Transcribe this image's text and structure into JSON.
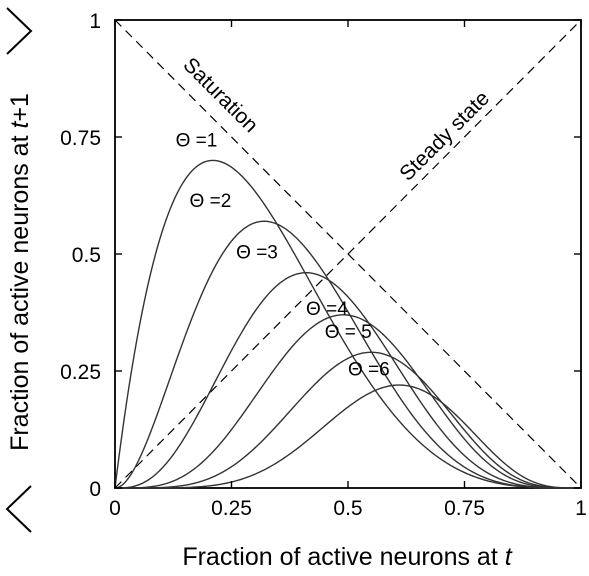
{
  "chart_data": {
    "type": "line",
    "xlabel": "Fraction of active neurons at t",
    "xlabel_text": "Fraction of active neurons at ",
    "xlabel_var": "t",
    "ylabel_text": "Fraction of active neurons at ",
    "ylabel_var": "t",
    "ylabel_suffix": "+1",
    "xlim": [
      0,
      1
    ],
    "ylim": [
      0,
      1
    ],
    "x_ticks": [
      {
        "value": 0,
        "label": "0"
      },
      {
        "value": 0.25,
        "label": "0.25"
      },
      {
        "value": 0.5,
        "label": "0.5"
      },
      {
        "value": 0.75,
        "label": "0.75"
      },
      {
        "value": 1,
        "label": "1"
      }
    ],
    "y_ticks": [
      {
        "value": 0,
        "label": "0"
      },
      {
        "value": 0.25,
        "label": "0.25"
      },
      {
        "value": 0.5,
        "label": "0.5"
      },
      {
        "value": 0.75,
        "label": "0.75"
      },
      {
        "value": 1,
        "label": "1"
      }
    ],
    "reference_lines": [
      {
        "name": "Saturation",
        "label": "Saturation",
        "x": [
          0,
          1
        ],
        "y": [
          1,
          0
        ],
        "style": "dashed"
      },
      {
        "name": "Steady state",
        "label": "Steady state",
        "x": [
          0,
          1
        ],
        "y": [
          0,
          1
        ],
        "style": "dashed"
      }
    ],
    "series": [
      {
        "label": "Θ =1",
        "theta": 1,
        "peak_x": 0.21,
        "peak_y": 0.7,
        "label_at": [
          0.13,
          0.73
        ]
      },
      {
        "label": "Θ =2",
        "theta": 2,
        "peak_x": 0.32,
        "peak_y": 0.57,
        "label_at": [
          0.16,
          0.6
        ]
      },
      {
        "label": "Θ =3",
        "theta": 3,
        "peak_x": 0.41,
        "peak_y": 0.46,
        "label_at": [
          0.26,
          0.49
        ]
      },
      {
        "label": "Θ =4",
        "theta": 4,
        "peak_x": 0.49,
        "peak_y": 0.37,
        "label_at": [
          0.41,
          0.37
        ]
      },
      {
        "label": "Θ = 5",
        "theta": 5,
        "peak_x": 0.55,
        "peak_y": 0.29,
        "label_at": [
          0.45,
          0.32
        ]
      },
      {
        "label": "Θ =6",
        "theta": 6,
        "peak_x": 0.61,
        "peak_y": 0.22,
        "label_at": [
          0.5,
          0.24
        ]
      }
    ],
    "grid": false,
    "colors": {
      "curve": "#333333",
      "reference": "#000000",
      "frame": "#000000"
    }
  }
}
